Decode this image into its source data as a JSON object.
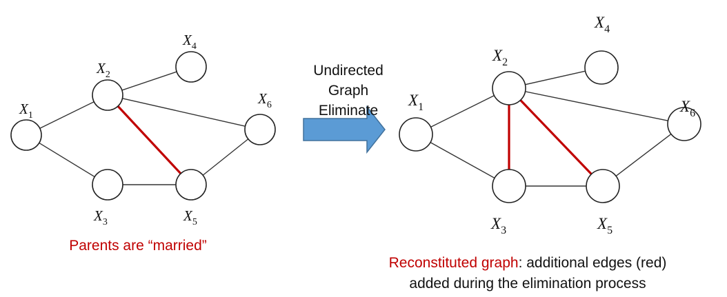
{
  "arrow_label": [
    "Undirected",
    "Graph",
    "Eliminate"
  ],
  "left_graph": {
    "nodes": [
      {
        "id": "X1",
        "var": "X",
        "sub": "1"
      },
      {
        "id": "X2",
        "var": "X",
        "sub": "2"
      },
      {
        "id": "X3",
        "var": "X",
        "sub": "3"
      },
      {
        "id": "X4",
        "var": "X",
        "sub": "4"
      },
      {
        "id": "X5",
        "var": "X",
        "sub": "5"
      },
      {
        "id": "X6",
        "var": "X",
        "sub": "6"
      }
    ],
    "edges": [
      [
        "X1",
        "X2"
      ],
      [
        "X1",
        "X3"
      ],
      [
        "X2",
        "X4"
      ],
      [
        "X2",
        "X6"
      ],
      [
        "X3",
        "X5"
      ],
      [
        "X5",
        "X6"
      ]
    ],
    "added_edges": [
      [
        "X2",
        "X5"
      ]
    ],
    "caption": "Parents are “married”"
  },
  "right_graph": {
    "nodes": [
      {
        "id": "X1",
        "var": "X",
        "sub": "1"
      },
      {
        "id": "X2",
        "var": "X",
        "sub": "2"
      },
      {
        "id": "X3",
        "var": "X",
        "sub": "3"
      },
      {
        "id": "X4",
        "var": "X",
        "sub": "4"
      },
      {
        "id": "X5",
        "var": "X",
        "sub": "5"
      },
      {
        "id": "X6",
        "var": "X",
        "sub": "6"
      }
    ],
    "edges": [
      [
        "X1",
        "X2"
      ],
      [
        "X1",
        "X3"
      ],
      [
        "X2",
        "X4"
      ],
      [
        "X2",
        "X6"
      ],
      [
        "X3",
        "X5"
      ],
      [
        "X5",
        "X6"
      ]
    ],
    "added_edges": [
      [
        "X2",
        "X3"
      ],
      [
        "X2",
        "X5"
      ]
    ],
    "caption_highlight": "Reconstituted graph",
    "caption_rest": ": additional edges (red)",
    "caption_line2": "added during the elimination process"
  },
  "colors": {
    "added_edge": "#c00000",
    "arrow_fill": "#5b9bd5",
    "arrow_stroke": "#41719c"
  }
}
